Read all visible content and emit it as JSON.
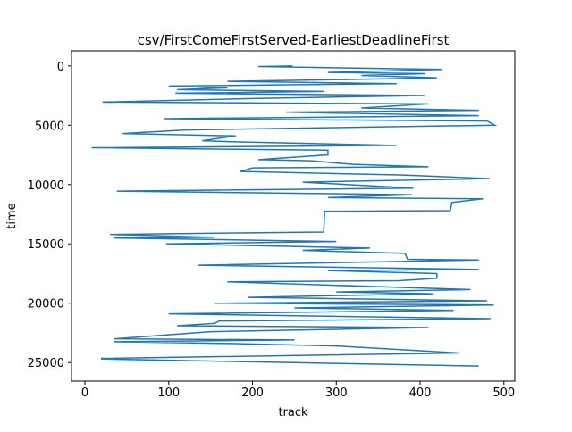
{
  "chart_data": {
    "type": "line",
    "title": "csv/FirstComeFirstServed-EarliestDeadlineFirst",
    "x_label": "track",
    "y_label": "time",
    "xlim": [
      -16,
      513
    ],
    "ylim": [
      -1265,
      26565
    ],
    "y_inverted": true,
    "xticks": [
      0,
      100,
      200,
      300,
      400,
      500
    ],
    "yticks": [
      0,
      5000,
      10000,
      15000,
      20000,
      25000
    ],
    "series": [
      {
        "color": "#1f77b4",
        "x": [
          248,
          207,
          426,
          290,
          406,
          330,
          420,
          310,
          170,
          372,
          100,
          170,
          110,
          285,
          108,
          405,
          200,
          21,
          410,
          330,
          470,
          240,
          470,
          95,
          480,
          489,
          390,
          120,
          45,
          180,
          140,
          180,
          372,
          8,
          290,
          290,
          207,
          270,
          320,
          410,
          200,
          185,
          380,
          483,
          260,
          392,
          38,
          390,
          290,
          475,
          438,
          436,
          286,
          285,
          30,
          155,
          35,
          300,
          97,
          340,
          260,
          382,
          385,
          470,
          135,
          470,
          290,
          420,
          420,
          375,
          170,
          460,
          300,
          415,
          195,
          480,
          155,
          488,
          250,
          440,
          100,
          484,
          160,
          155,
          110,
          410,
          150,
          35,
          250,
          35,
          175,
          300,
          447,
          20,
          20,
          470
        ],
        "values": [
          0,
          50,
          300,
          550,
          650,
          800,
          1000,
          1150,
          1300,
          1500,
          1700,
          1850,
          2000,
          2150,
          2300,
          2500,
          2750,
          3050,
          3200,
          3550,
          3750,
          3900,
          4200,
          4450,
          4650,
          5000,
          5100,
          5400,
          5700,
          5900,
          6300,
          6400,
          6700,
          6900,
          7100,
          7500,
          7900,
          8000,
          8300,
          8500,
          8600,
          8900,
          9200,
          9500,
          9800,
          10300,
          10550,
          10850,
          11100,
          11200,
          11500,
          12200,
          12250,
          14000,
          14200,
          14450,
          14500,
          14800,
          15000,
          15350,
          15550,
          15800,
          16300,
          16350,
          16800,
          17150,
          17250,
          17500,
          17900,
          18100,
          18200,
          18850,
          19050,
          19200,
          19500,
          19800,
          20000,
          20150,
          20400,
          20600,
          20900,
          21300,
          21500,
          21700,
          21900,
          22050,
          22400,
          23000,
          23100,
          23250,
          23400,
          23600,
          24200,
          24650,
          24700,
          25300
        ]
      }
    ]
  }
}
